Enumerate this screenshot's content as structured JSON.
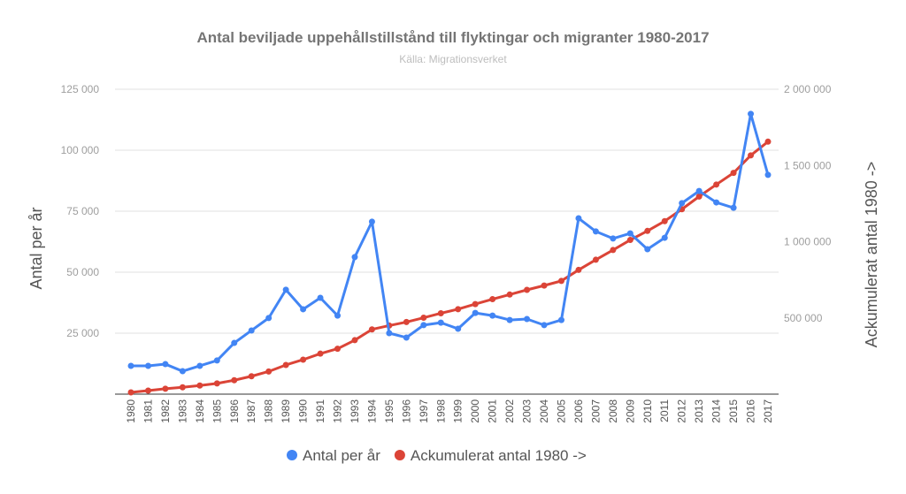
{
  "chart_data": {
    "type": "line",
    "title": "Antal beviljade uppehållstillstånd till flyktingar och migranter 1980-2017",
    "subtitle": "Källa: Migrationsverket",
    "ylabel": "Antal per år",
    "y2label": "Ackumulerat antal 1980 ->",
    "ylim": [
      0,
      125000
    ],
    "y2lim": [
      0,
      2000000
    ],
    "yticks": [
      "25 000",
      "50 000",
      "75 000",
      "100 000",
      "125 000"
    ],
    "y2ticks": [
      "500 000",
      "1 000 000",
      "1 500 000",
      "2 000 000"
    ],
    "grid": true,
    "legend_position": "bottom",
    "x": [
      "1980",
      "1981",
      "1982",
      "1983",
      "1984",
      "1985",
      "1986",
      "1987",
      "1988",
      "1989",
      "1990",
      "1991",
      "1992",
      "1993",
      "1994",
      "1995",
      "1996",
      "1997",
      "1998",
      "1999",
      "2000",
      "2001",
      "2002",
      "2003",
      "2004",
      "2005",
      "2006",
      "2007",
      "2008",
      "2009",
      "2010",
      "2011",
      "2012",
      "2013",
      "2014",
      "2015",
      "2016",
      "2017"
    ],
    "series": [
      {
        "name": "Antal per år",
        "axis": "left",
        "color": "#4285f4",
        "values": [
          11600,
          11600,
          12300,
          9400,
          11600,
          13800,
          21000,
          26100,
          31200,
          42800,
          34800,
          39500,
          32200,
          56200,
          70700,
          25000,
          23200,
          28300,
          29300,
          26800,
          33300,
          32200,
          30400,
          30800,
          28300,
          30400,
          72100,
          66700,
          63800,
          65900,
          59400,
          64100,
          78300,
          83300,
          78600,
          76400,
          114900,
          89900
        ]
      },
      {
        "name": "Ackumulerat antal 1980 ->",
        "axis": "right",
        "color": "#db4437",
        "values": [
          11600,
          23200,
          35500,
          44900,
          56500,
          70300,
          91300,
          117400,
          148600,
          191400,
          226200,
          265700,
          297900,
          354100,
          424800,
          449800,
          473000,
          501300,
          530600,
          557400,
          590700,
          622900,
          653300,
          684100,
          712400,
          742800,
          814900,
          881600,
          945400,
          1011300,
          1070700,
          1134800,
          1213100,
          1296400,
          1375000,
          1451400,
          1566300,
          1656200
        ]
      }
    ]
  }
}
